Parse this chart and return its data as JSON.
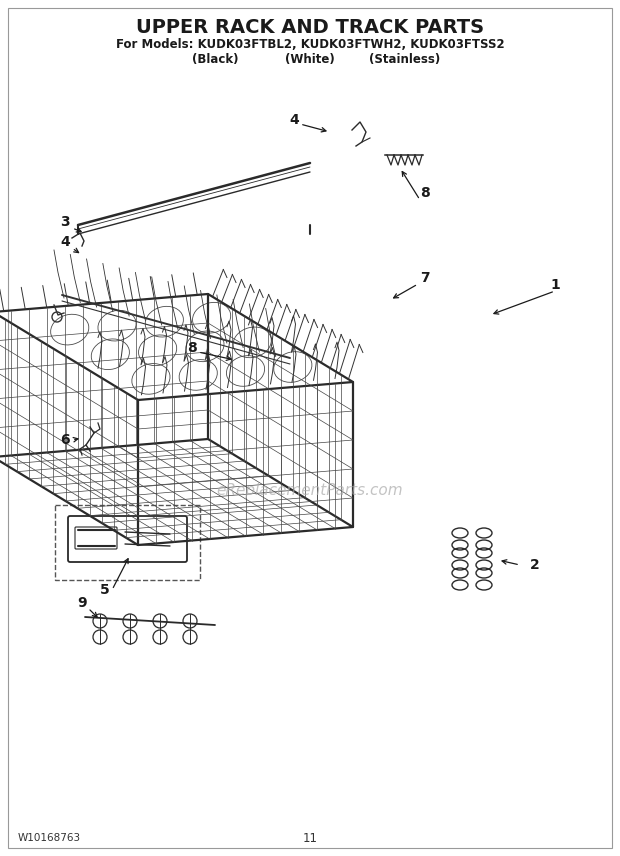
{
  "title": "UPPER RACK AND TRACK PARTS",
  "subtitle1": "For Models: KUDK03FTBL2, KUDK03FTWH2, KUDK03FTSS2",
  "subtitle2_parts": [
    "(Black)",
    "(White)",
    "(Stainless)"
  ],
  "watermark": "eReplacementParts.com",
  "doc_number": "W10168763",
  "page_number": "11",
  "bg": "#ffffff",
  "dark": "#1a1a1a",
  "mid": "#555555",
  "light": "#888888",
  "title_fs": 14,
  "sub_fs": 8.5,
  "label_fs": 10,
  "footer_fs": 7.5,
  "wm_fs": 11
}
